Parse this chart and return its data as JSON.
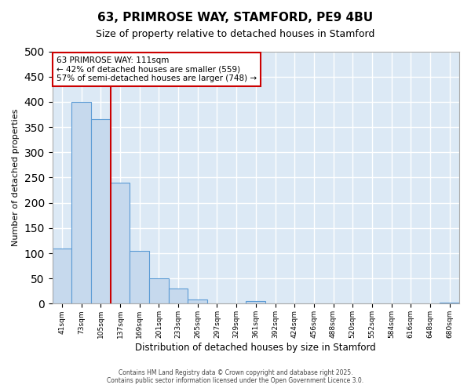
{
  "title1": "63, PRIMROSE WAY, STAMFORD, PE9 4BU",
  "title2": "Size of property relative to detached houses in Stamford",
  "xlabel": "Distribution of detached houses by size in Stamford",
  "ylabel": "Number of detached properties",
  "bin_labels": [
    "41sqm",
    "73sqm",
    "105sqm",
    "137sqm",
    "169sqm",
    "201sqm",
    "233sqm",
    "265sqm",
    "297sqm",
    "329sqm",
    "361sqm",
    "392sqm",
    "424sqm",
    "456sqm",
    "488sqm",
    "520sqm",
    "552sqm",
    "584sqm",
    "616sqm",
    "648sqm",
    "680sqm"
  ],
  "bar_values": [
    110,
    400,
    365,
    240,
    105,
    50,
    30,
    8,
    0,
    0,
    5,
    0,
    0,
    0,
    0,
    0,
    0,
    0,
    0,
    0,
    2
  ],
  "bar_color": "#c6d9ed",
  "bar_edge_color": "#5b9bd5",
  "property_label": "63 PRIMROSE WAY: 111sqm",
  "annotation_line1": "← 42% of detached houses are smaller (559)",
  "annotation_line2": "57% of semi-detached houses are larger (748) →",
  "vline_color": "#cc0000",
  "vline_x_index": 2.5,
  "annotation_box_edge": "#cc0000",
  "ylim": [
    0,
    500
  ],
  "yticks": [
    0,
    50,
    100,
    150,
    200,
    250,
    300,
    350,
    400,
    450,
    500
  ],
  "fig_bg": "#ffffff",
  "plot_bg": "#dce9f5",
  "grid_color": "#ffffff",
  "footer1": "Contains HM Land Registry data © Crown copyright and database right 2025.",
  "footer2": "Contains public sector information licensed under the Open Government Licence 3.0."
}
